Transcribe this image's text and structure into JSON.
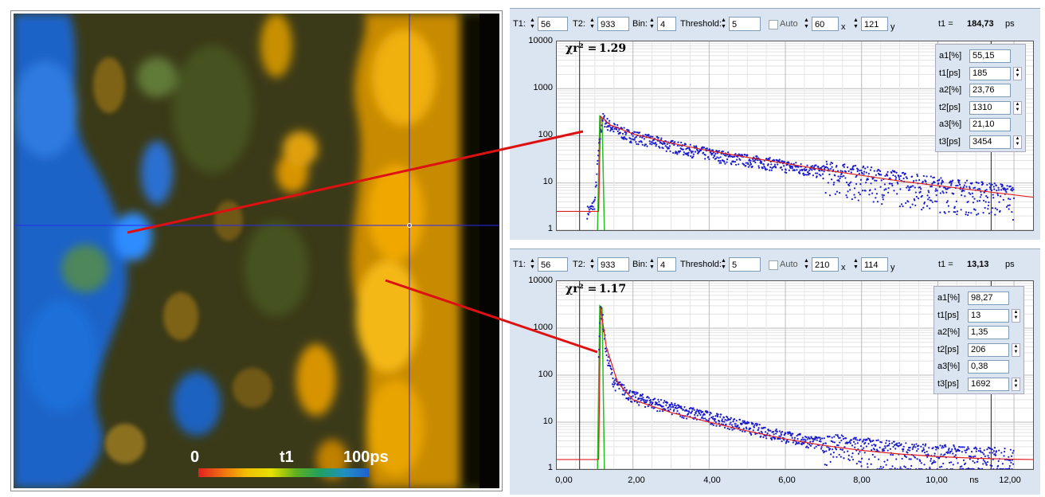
{
  "image": {
    "colorbar": {
      "min_label": "0",
      "mid_label": "t1",
      "max_label": "100ps"
    }
  },
  "top_panel": {
    "controls": {
      "t1_label": "T1:",
      "t1_value": "56",
      "t2_label": "T2:",
      "t2_value": "933",
      "bin_label": "Bin:",
      "bin_value": "4",
      "threshold_label": "Threshold:",
      "threshold_value": "5",
      "auto_label": "Auto",
      "x_value": "60",
      "x_label": "x",
      "y_value": "121",
      "y_label": "y",
      "tau_label": "t1 =",
      "tau_value": "184,73",
      "tau_unit": "ps"
    },
    "chi_label": "χr² =",
    "chi_value": "1.29",
    "params": [
      {
        "label": "a1[%]",
        "value": "55,15",
        "spin": false
      },
      {
        "label": "t1[ps]",
        "value": "185",
        "spin": true
      },
      {
        "label": "a2[%]",
        "value": "23,76",
        "spin": false
      },
      {
        "label": "t2[ps]",
        "value": "1310",
        "spin": true
      },
      {
        "label": "a3[%]",
        "value": "21,10",
        "spin": false
      },
      {
        "label": "t3[ps]",
        "value": "3454",
        "spin": true
      }
    ],
    "y_ticks": [
      "10000",
      "1000",
      "100",
      "10",
      "1"
    ]
  },
  "bottom_panel": {
    "controls": {
      "t1_label": "T1:",
      "t1_value": "56",
      "t2_label": "T2:",
      "t2_value": "933",
      "bin_label": "Bin:",
      "bin_value": "4",
      "threshold_label": "Threshold:",
      "threshold_value": "5",
      "auto_label": "Auto",
      "x_value": "210",
      "x_label": "x",
      "y_value": "114",
      "y_label": "y",
      "tau_label": "t1 =",
      "tau_value": "13,13",
      "tau_unit": "ps"
    },
    "chi_label": "χr² =",
    "chi_value": "1.17",
    "params": [
      {
        "label": "a1[%]",
        "value": "98,27",
        "spin": false
      },
      {
        "label": "t1[ps]",
        "value": "13",
        "spin": true
      },
      {
        "label": "a2[%]",
        "value": "1,35",
        "spin": false
      },
      {
        "label": "t2[ps]",
        "value": "206",
        "spin": true
      },
      {
        "label": "a3[%]",
        "value": "0,38",
        "spin": false
      },
      {
        "label": "t3[ps]",
        "value": "1692",
        "spin": true
      }
    ],
    "y_ticks": [
      "10000",
      "1000",
      "100",
      "10",
      "1"
    ],
    "x_ticks": [
      "0,00",
      "2,00",
      "4,00",
      "6,00",
      "8,00",
      "10,00",
      "12,00"
    ],
    "x_unit": "ns"
  },
  "colors": {
    "fit": "#e02020",
    "irf": "#20c020",
    "data_points": "#1a1acc",
    "crosshair": "#2a2aee",
    "callout": "#dd1111"
  },
  "chart_data": [
    {
      "type": "scatter",
      "xlim": [
        0,
        12.5
      ],
      "ylim": [
        1,
        10000
      ],
      "yscale": "log",
      "y_ticks": [
        10000,
        1000,
        100,
        10,
        1
      ],
      "series": [
        {
          "points": [
            [
              0.8,
              2.5
            ],
            [
              0.9,
              2.8
            ],
            [
              1.0,
              4
            ],
            [
              1.1,
              50
            ],
            [
              1.2,
              240
            ],
            [
              1.4,
              160
            ],
            [
              1.8,
              110
            ],
            [
              2.5,
              78
            ],
            [
              3.5,
              50
            ],
            [
              4.5,
              35
            ],
            [
              5.5,
              27
            ],
            [
              6.5,
              20
            ],
            [
              7.5,
              15
            ],
            [
              8.5,
              12
            ],
            [
              9.5,
              9
            ],
            [
              10.5,
              7
            ],
            [
              11.5,
              6
            ],
            [
              12.0,
              5.5
            ]
          ]
        }
      ],
      "fit": [
        [
          0.0,
          2.5
        ],
        [
          1.1,
          2.5
        ],
        [
          1.15,
          260
        ],
        [
          1.4,
          170
        ],
        [
          2.0,
          110
        ],
        [
          3.0,
          70
        ],
        [
          4.0,
          48
        ],
        [
          5.0,
          35
        ],
        [
          6.0,
          26
        ],
        [
          7.0,
          19
        ],
        [
          8.0,
          14.5
        ],
        [
          9.0,
          11
        ],
        [
          10.0,
          8.8
        ],
        [
          11.0,
          7
        ],
        [
          12.0,
          5.6
        ],
        [
          12.5,
          5
        ]
      ],
      "irf_peak": [
        1.15,
        260
      ],
      "cursor_lines_x": [
        0.6,
        11.4
      ]
    },
    {
      "type": "scatter",
      "xlim": [
        0,
        12.5
      ],
      "ylim": [
        1,
        10000
      ],
      "yscale": "log",
      "x_ticks": [
        0,
        2,
        4,
        6,
        8,
        10,
        12
      ],
      "xlabel": "ns",
      "series": [
        {
          "points": [
            [
              1.1,
              300
            ],
            [
              1.15,
              2800
            ],
            [
              1.2,
              1800
            ],
            [
              1.3,
              300
            ],
            [
              1.5,
              70
            ],
            [
              2.0,
              35
            ],
            [
              3.0,
              20
            ],
            [
              4.0,
              13
            ],
            [
              5.0,
              8
            ],
            [
              6.0,
              5
            ],
            [
              7.0,
              3.5
            ],
            [
              8.0,
              2.8
            ],
            [
              9.0,
              2.2
            ],
            [
              10.0,
              2
            ],
            [
              11.0,
              1.8
            ],
            [
              12.0,
              1.6
            ]
          ]
        }
      ],
      "fit": [
        [
          0.0,
          1.6
        ],
        [
          1.1,
          1.6
        ],
        [
          1.15,
          2800
        ],
        [
          1.3,
          400
        ],
        [
          1.6,
          70
        ],
        [
          2.0,
          30
        ],
        [
          3.0,
          16
        ],
        [
          4.0,
          10
        ],
        [
          5.0,
          6.5
        ],
        [
          6.0,
          4.4
        ],
        [
          7.0,
          3.2
        ],
        [
          8.0,
          2.5
        ],
        [
          9.0,
          2.1
        ],
        [
          10.0,
          1.85
        ],
        [
          11.0,
          1.7
        ],
        [
          12.0,
          1.62
        ],
        [
          12.5,
          1.6
        ]
      ],
      "irf_peak": [
        1.15,
        3000
      ],
      "cursor_lines_x": [
        0.6,
        11.4
      ]
    }
  ]
}
